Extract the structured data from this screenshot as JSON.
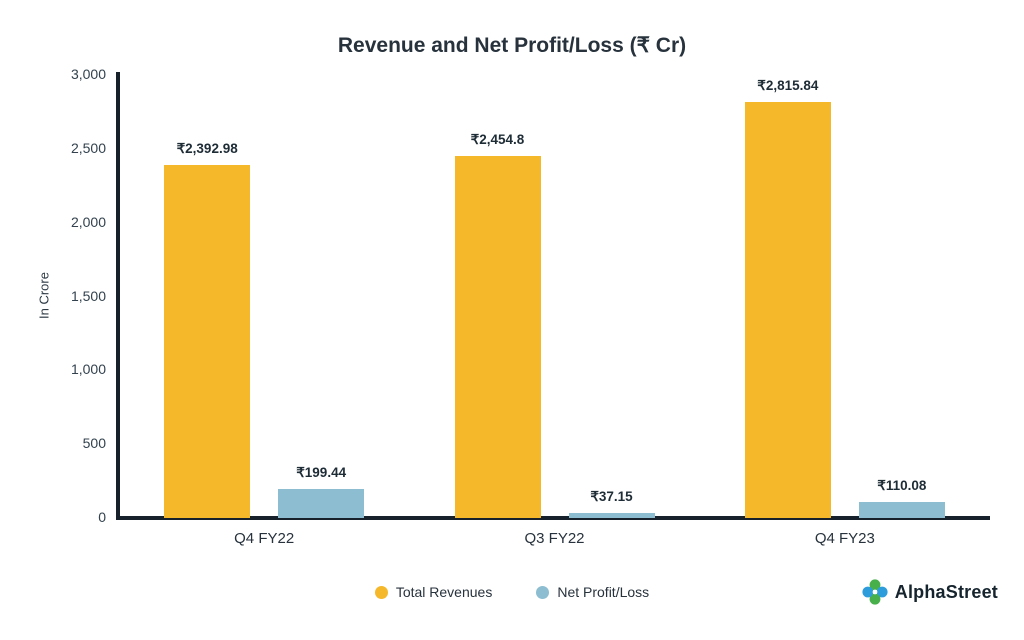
{
  "title": "Revenue and Net Profit/Loss (₹ Cr)",
  "chart_data": {
    "type": "bar",
    "categories": [
      "Q4 FY22",
      "Q3 FY22",
      "Q4 FY23"
    ],
    "series": [
      {
        "name": "Total Revenues",
        "color": "#F5B82B",
        "values": [
          2392.98,
          2454.8,
          2815.84
        ],
        "labels": [
          "₹2,392.98",
          "₹2,454.8",
          "₹2,815.84"
        ]
      },
      {
        "name": "Net Profit/Loss",
        "color": "#8CBDD0",
        "values": [
          199.44,
          37.15,
          110.08
        ],
        "labels": [
          "₹199.44",
          "₹37.15",
          "₹110.08"
        ]
      }
    ],
    "ylabel": "In Crore",
    "ylim": [
      0,
      3000
    ],
    "yticks": [
      0,
      500,
      1000,
      1500,
      2000,
      2500,
      3000
    ],
    "ytick_labels": [
      "0",
      "500",
      "1,000",
      "1,500",
      "2,000",
      "2,500",
      "3,000"
    ],
    "grid": false,
    "legend_position": "bottom"
  },
  "branding": {
    "name": "AlphaStreet",
    "icon": "alphastreet-flower-icon"
  }
}
